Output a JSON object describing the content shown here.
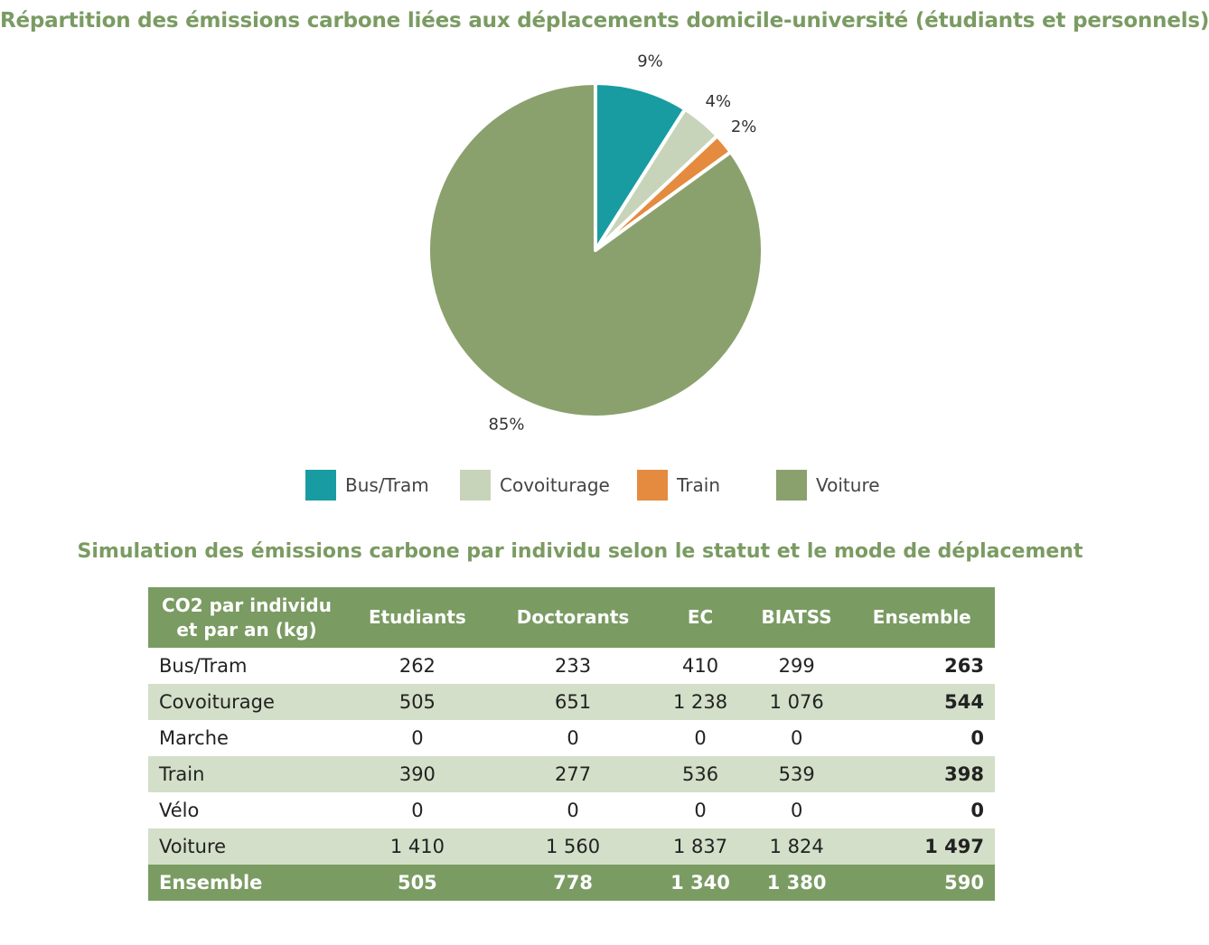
{
  "title": "Répartition des émissions carbone liées aux déplacements domicile-université (étudiants et personnels)",
  "chart_data": [
    {
      "type": "pie",
      "title": "Répartition des émissions carbone liées aux déplacements domicile-université (étudiants et personnels)",
      "slices": [
        {
          "label": "Bus/Tram",
          "value": 9,
          "display": "9%",
          "color": "#189ca1"
        },
        {
          "label": "Covoiturage",
          "value": 4,
          "display": "4%",
          "color": "#c7d4b9"
        },
        {
          "label": "Train",
          "value": 2,
          "display": "2%",
          "color": "#e48b40"
        },
        {
          "label": "Voiture",
          "value": 85,
          "display": "85%",
          "color": "#8aa16d"
        }
      ],
      "legend_position": "bottom"
    },
    {
      "type": "table",
      "title": "Simulation des émissions carbone par individu selon le statut et le mode de déplacement",
      "header": [
        "CO2 par individu et par an (kg)",
        "Etudiants",
        "Doctorants",
        "EC",
        "BIATSS",
        "Ensemble"
      ],
      "rows": [
        [
          "Bus/Tram",
          "262",
          "233",
          "410",
          "299",
          "263"
        ],
        [
          "Covoiturage",
          "505",
          "651",
          "1 238",
          "1 076",
          "544"
        ],
        [
          "Marche",
          "0",
          "0",
          "0",
          "0",
          "0"
        ],
        [
          "Train",
          "390",
          "277",
          "536",
          "539",
          "398"
        ],
        [
          "Vélo",
          "0",
          "0",
          "0",
          "0",
          "0"
        ],
        [
          "Voiture",
          "1 410",
          "1 560",
          "1 837",
          "1 824",
          "1 497"
        ],
        [
          "Ensemble",
          "505",
          "778",
          "1 340",
          "1 380",
          "590"
        ]
      ]
    }
  ],
  "table": {
    "subtitle": "Simulation des émissions carbone par individu selon le statut et le mode de déplacement",
    "header_line1": "CO2 par individu",
    "header_line2": "et par an (kg)",
    "columns": [
      "Etudiants",
      "Doctorants",
      "EC",
      "BIATSS",
      "Ensemble"
    ]
  }
}
